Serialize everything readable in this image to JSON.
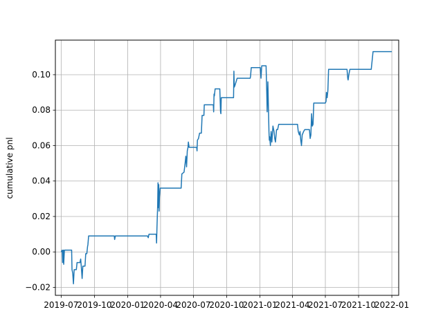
{
  "chart_data": {
    "type": "line",
    "title": "",
    "xlabel": "",
    "ylabel": "cumulative pnl",
    "grid": true,
    "legend": "none",
    "line_color": "#1f77b4",
    "xlim": [
      "2019-06-15",
      "2022-01-20"
    ],
    "ylim": [
      -0.0245,
      0.1195
    ],
    "x_ticks": [
      "2019-07",
      "2019-10",
      "2020-01",
      "2020-04",
      "2020-07",
      "2020-10",
      "2021-01",
      "2021-04",
      "2021-07",
      "2021-10",
      "2022-01"
    ],
    "y_ticks": [
      "−0.02",
      "0.00",
      "0.02",
      "0.04",
      "0.06",
      "0.08",
      "0.10"
    ],
    "y_tick_values": [
      -0.02,
      0.0,
      0.02,
      0.04,
      0.06,
      0.08,
      0.1
    ],
    "series": [
      {
        "name": "",
        "points": [
          [
            "2019-07-01",
            0.0
          ],
          [
            "2019-07-04",
            0.001
          ],
          [
            "2019-07-05",
            -0.006
          ],
          [
            "2019-07-07",
            0.001
          ],
          [
            "2019-07-08",
            -0.007
          ],
          [
            "2019-07-10",
            0.001
          ],
          [
            "2019-07-30",
            0.001
          ],
          [
            "2019-07-31",
            -0.01
          ],
          [
            "2019-08-02",
            -0.012
          ],
          [
            "2019-08-04",
            -0.018
          ],
          [
            "2019-08-06",
            -0.01
          ],
          [
            "2019-08-12",
            -0.01
          ],
          [
            "2019-08-14",
            -0.006
          ],
          [
            "2019-08-22",
            -0.006
          ],
          [
            "2019-08-24",
            -0.004
          ],
          [
            "2019-08-26",
            -0.009
          ],
          [
            "2019-08-28",
            -0.015
          ],
          [
            "2019-08-30",
            -0.008
          ],
          [
            "2019-09-05",
            -0.008
          ],
          [
            "2019-09-07",
            -0.001
          ],
          [
            "2019-09-10",
            -0.001
          ],
          [
            "2019-09-12",
            0.003
          ],
          [
            "2019-09-13",
            0.004
          ],
          [
            "2019-09-15",
            0.009
          ],
          [
            "2019-11-25",
            0.009
          ],
          [
            "2019-11-26",
            0.007
          ],
          [
            "2019-11-28",
            0.009
          ],
          [
            "2020-02-25",
            0.009
          ],
          [
            "2020-02-27",
            0.008
          ],
          [
            "2020-02-29",
            0.01
          ],
          [
            "2020-03-20",
            0.01
          ],
          [
            "2020-03-21",
            0.005
          ],
          [
            "2020-03-22",
            0.013
          ],
          [
            "2020-03-24",
            0.026
          ],
          [
            "2020-03-25",
            0.039
          ],
          [
            "2020-03-26",
            0.025
          ],
          [
            "2020-03-27",
            0.038
          ],
          [
            "2020-03-28",
            0.023
          ],
          [
            "2020-03-29",
            0.031
          ],
          [
            "2020-03-31",
            0.036
          ],
          [
            "2020-05-28",
            0.036
          ],
          [
            "2020-05-30",
            0.044
          ],
          [
            "2020-06-05",
            0.045
          ],
          [
            "2020-06-08",
            0.05
          ],
          [
            "2020-06-10",
            0.054
          ],
          [
            "2020-06-12",
            0.048
          ],
          [
            "2020-06-14",
            0.057
          ],
          [
            "2020-06-16",
            0.059
          ],
          [
            "2020-06-17",
            0.062
          ],
          [
            "2020-06-19",
            0.059
          ],
          [
            "2020-07-10",
            0.059
          ],
          [
            "2020-07-11",
            0.057
          ],
          [
            "2020-07-12",
            0.063
          ],
          [
            "2020-07-15",
            0.064
          ],
          [
            "2020-07-18",
            0.067
          ],
          [
            "2020-07-23",
            0.067
          ],
          [
            "2020-07-25",
            0.077
          ],
          [
            "2020-07-30",
            0.077
          ],
          [
            "2020-07-31",
            0.083
          ],
          [
            "2020-08-25",
            0.083
          ],
          [
            "2020-08-26",
            0.079
          ],
          [
            "2020-08-27",
            0.089
          ],
          [
            "2020-08-28",
            0.088
          ],
          [
            "2020-08-30",
            0.092
          ],
          [
            "2020-09-12",
            0.092
          ],
          [
            "2020-09-14",
            0.079
          ],
          [
            "2020-09-15",
            0.078
          ],
          [
            "2020-09-16",
            0.087
          ],
          [
            "2020-10-20",
            0.087
          ],
          [
            "2020-10-21",
            0.102
          ],
          [
            "2020-10-22",
            0.093
          ],
          [
            "2020-10-24",
            0.094
          ],
          [
            "2020-10-27",
            0.096
          ],
          [
            "2020-10-30",
            0.098
          ],
          [
            "2020-12-05",
            0.098
          ],
          [
            "2020-12-06",
            0.099
          ],
          [
            "2020-12-08",
            0.104
          ],
          [
            "2021-01-02",
            0.104
          ],
          [
            "2021-01-04",
            0.098
          ],
          [
            "2021-01-06",
            0.105
          ],
          [
            "2021-01-18",
            0.105
          ],
          [
            "2021-01-20",
            0.089
          ],
          [
            "2021-01-21",
            0.079
          ],
          [
            "2021-01-23",
            0.096
          ],
          [
            "2021-01-26",
            0.068
          ],
          [
            "2021-01-27",
            0.063
          ],
          [
            "2021-01-28",
            0.065
          ],
          [
            "2021-01-30",
            0.06
          ],
          [
            "2021-02-01",
            0.068
          ],
          [
            "2021-02-03",
            0.062
          ],
          [
            "2021-02-06",
            0.071
          ],
          [
            "2021-02-09",
            0.068
          ],
          [
            "2021-02-11",
            0.064
          ],
          [
            "2021-02-13",
            0.062
          ],
          [
            "2021-02-16",
            0.069
          ],
          [
            "2021-02-19",
            0.069
          ],
          [
            "2021-02-22",
            0.072
          ],
          [
            "2021-04-15",
            0.072
          ],
          [
            "2021-04-17",
            0.068
          ],
          [
            "2021-04-20",
            0.066
          ],
          [
            "2021-04-22",
            0.068
          ],
          [
            "2021-04-24",
            0.063
          ],
          [
            "2021-04-26",
            0.06
          ],
          [
            "2021-04-28",
            0.066
          ],
          [
            "2021-05-02",
            0.068
          ],
          [
            "2021-05-05",
            0.069
          ],
          [
            "2021-05-18",
            0.069
          ],
          [
            "2021-05-20",
            0.064
          ],
          [
            "2021-05-22",
            0.066
          ],
          [
            "2021-05-24",
            0.078
          ],
          [
            "2021-05-26",
            0.071
          ],
          [
            "2021-05-28",
            0.072
          ],
          [
            "2021-05-30",
            0.084
          ],
          [
            "2021-07-01",
            0.084
          ],
          [
            "2021-07-03",
            0.085
          ],
          [
            "2021-07-04",
            0.09
          ],
          [
            "2021-07-06",
            0.087
          ],
          [
            "2021-07-08",
            0.091
          ],
          [
            "2021-07-10",
            0.103
          ],
          [
            "2021-08-30",
            0.103
          ],
          [
            "2021-09-01",
            0.098
          ],
          [
            "2021-09-02",
            0.097
          ],
          [
            "2021-09-04",
            0.1
          ],
          [
            "2021-09-07",
            0.103
          ],
          [
            "2021-11-05",
            0.103
          ],
          [
            "2021-11-10",
            0.113
          ],
          [
            "2022-01-01",
            0.113
          ]
        ]
      }
    ]
  }
}
